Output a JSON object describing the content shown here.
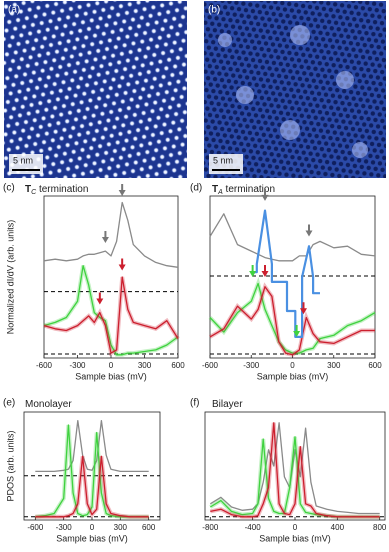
{
  "images": [
    {
      "label": "(a)",
      "scale": "5 nm"
    },
    {
      "label": "(b)",
      "scale": "5 nm"
    }
  ],
  "chart_data": [
    {
      "type": "line",
      "label": "(c)",
      "title": [
        "T",
        "C",
        " termination"
      ],
      "ylabel": "Normalized dI/dV (arb. units)",
      "xlabel": "Sample bias (mV)",
      "xlim": [
        -600,
        600
      ],
      "ylim": [
        0,
        10
      ],
      "xticks": [
        -600,
        -300,
        0,
        300,
        600
      ],
      "hlines": [
        4.1,
        0.25
      ],
      "x": [
        -600,
        -500,
        -400,
        -300,
        -250,
        -200,
        -150,
        -100,
        -50,
        0,
        50,
        100,
        150,
        200,
        300,
        400,
        500,
        600
      ],
      "series": [
        {
          "color": "#8a8a8a",
          "values": [
            6.0,
            6.1,
            6.0,
            6.1,
            6.3,
            6.4,
            6.4,
            6.5,
            6.6,
            6.3,
            7.2,
            9.6,
            8.5,
            7.0,
            6.3,
            5.9,
            5.7,
            5.6
          ]
        },
        {
          "color": "#3fd23f",
          "values": [
            2.0,
            2.2,
            2.5,
            3.5,
            5.7,
            4.5,
            2.8,
            2.5,
            2.3,
            0.8,
            0.2,
            0.2,
            0.3,
            0.3,
            0.4,
            0.5,
            0.8,
            1.3
          ]
        },
        {
          "color": "#cc1f2e",
          "values": [
            2.0,
            1.8,
            1.7,
            2.0,
            2.3,
            2.6,
            2.2,
            2.8,
            2.0,
            0.3,
            0.5,
            5.0,
            3.0,
            2.2,
            2.0,
            1.8,
            2.3,
            1.2
          ]
        }
      ],
      "arrows": [
        {
          "x": -50,
          "y": 7.1,
          "color": "#777"
        },
        {
          "x": 100,
          "y": 10.0,
          "color": "#777"
        },
        {
          "x": -100,
          "y": 3.3,
          "color": "#cc1f2e"
        },
        {
          "x": 100,
          "y": 5.4,
          "color": "#cc1f2e"
        }
      ]
    },
    {
      "type": "line",
      "label": "(d)",
      "title": [
        "T",
        "A",
        " termination"
      ],
      "xlabel": "Sample bias (mV)",
      "xlim": [
        -600,
        600
      ],
      "ylim": [
        0,
        10
      ],
      "xticks": [
        -600,
        -300,
        0,
        300,
        600
      ],
      "hlines": [
        5.06,
        0.25
      ],
      "x": [
        -600,
        -500,
        -400,
        -300,
        -250,
        -200,
        -150,
        -100,
        -50,
        0,
        50,
        100,
        150,
        200,
        300,
        400,
        500,
        600
      ],
      "series": [
        {
          "color": "#8a8a8a",
          "values": [
            7.5,
            8.9,
            7.0,
            6.6,
            6.4,
            6.2,
            6.1,
            6.0,
            6.0,
            6.0,
            6.3,
            6.3,
            7.0,
            7.2,
            6.8,
            6.9,
            6.4,
            6.3
          ]
        },
        {
          "color": "#3fd23f",
          "values": [
            2.5,
            1.6,
            2.8,
            3.5,
            4.6,
            3.0,
            2.0,
            1.0,
            0.5,
            0.3,
            0.3,
            0.5,
            0.6,
            1.2,
            1.4,
            2.0,
            2.3,
            2.8
          ]
        },
        {
          "color": "#cc1f2e",
          "values": [
            1.3,
            1.8,
            3.2,
            2.4,
            3.0,
            4.4,
            3.8,
            1.0,
            0.3,
            0.2,
            0.5,
            2.5,
            1.5,
            1.0,
            0.9,
            1.3,
            1.7,
            1.7
          ]
        },
        {
          "color": "#4a90e2",
          "x": [
            -300,
            -260,
            -260,
            -200,
            -150,
            -150,
            -40,
            -40,
            20,
            20,
            70,
            70,
            120,
            150,
            150,
            200
          ],
          "values": [
            5.3,
            5.3,
            5.8,
            9.1,
            5.8,
            4.7,
            4.7,
            2.9,
            2.9,
            1.3,
            1.3,
            5.0,
            6.9,
            5.0,
            4.0,
            4.0
          ]
        }
      ],
      "arrows": [
        {
          "x": -200,
          "y": 9.7,
          "color": "#777"
        },
        {
          "x": 120,
          "y": 7.5,
          "color": "#777"
        },
        {
          "x": -290,
          "y": 5.0,
          "color": "#3fd23f"
        },
        {
          "x": -200,
          "y": 5.0,
          "color": "#cc1f2e"
        },
        {
          "x": 30,
          "y": 1.3,
          "color": "#3fd23f"
        },
        {
          "x": 80,
          "y": 2.7,
          "color": "#cc1f2e"
        }
      ]
    },
    {
      "type": "line",
      "label": "(e)",
      "title": [
        "Monolayer"
      ],
      "ylabel": "PDOS (arb. units)",
      "xlabel": "Sample bias (mV)",
      "xlim": [
        -720,
        720
      ],
      "ylim": [
        0,
        10
      ],
      "xticks": [
        -600,
        -300,
        0,
        300,
        600
      ],
      "hlines": [
        4.1,
        0.3
      ],
      "x": [
        -600,
        -500,
        -400,
        -300,
        -250,
        -200,
        -150,
        -100,
        -50,
        0,
        50,
        100,
        150,
        200,
        300,
        400,
        500,
        600
      ],
      "series": [
        {
          "color": "#8a8a8a",
          "values": [
            4.5,
            4.5,
            4.5,
            4.6,
            4.7,
            5.5,
            9.2,
            6.0,
            4.7,
            4.6,
            5.5,
            9.2,
            6.0,
            4.7,
            4.5,
            4.5,
            4.5,
            4.5
          ]
        },
        {
          "color": "#3fd23f",
          "values": [
            0.3,
            0.4,
            0.6,
            2.0,
            8.8,
            2.5,
            0.6,
            0.4,
            0.5,
            1.2,
            8.1,
            2.5,
            0.6,
            0.4,
            0.3,
            0.3,
            0.3,
            0.3
          ]
        },
        {
          "color": "#cc1f2e",
          "values": [
            0.3,
            0.3,
            0.3,
            0.3,
            0.4,
            0.6,
            1.5,
            5.9,
            1.5,
            0.5,
            1.0,
            5.9,
            1.5,
            0.6,
            0.4,
            0.3,
            0.3,
            0.3
          ]
        }
      ]
    },
    {
      "type": "line",
      "label": "(f)",
      "title": [
        "Bilayer"
      ],
      "xlabel": "Sample bias (mV)",
      "xlim": [
        -850,
        850
      ],
      "ylim": [
        0,
        10
      ],
      "xticks": [
        -800,
        -400,
        0,
        400,
        800
      ],
      "hlines": [
        0.3
      ],
      "x": [
        -800,
        -700,
        -600,
        -500,
        -400,
        -350,
        -300,
        -250,
        -200,
        -150,
        -100,
        -50,
        0,
        50,
        100,
        150,
        200,
        300,
        400,
        500,
        600,
        700,
        800
      ],
      "series": [
        {
          "color": "#8a8a8a",
          "values": [
            1.5,
            2.1,
            1.2,
            0.9,
            1.0,
            1.5,
            3.5,
            6.5,
            5.0,
            9.0,
            4.0,
            3.0,
            6.5,
            4.0,
            8.5,
            3.5,
            1.3,
            1.0,
            0.8,
            0.7,
            0.6,
            0.6,
            0.6
          ]
        },
        {
          "color": "#3fd23f",
          "values": [
            1.2,
            1.8,
            0.8,
            0.5,
            0.6,
            1.5,
            7.5,
            2.0,
            0.8,
            0.6,
            0.6,
            3.0,
            7.7,
            1.5,
            0.7,
            0.6,
            0.5,
            0.4,
            0.3,
            0.3,
            0.3,
            0.3,
            0.3
          ]
        },
        {
          "color": "#cc1f2e",
          "values": [
            0.8,
            1.0,
            0.5,
            0.3,
            0.3,
            0.4,
            1.5,
            3.0,
            9.0,
            1.5,
            0.6,
            0.5,
            1.5,
            6.8,
            1.5,
            1.3,
            0.6,
            0.4,
            0.3,
            0.3,
            0.3,
            0.3,
            0.3
          ]
        }
      ]
    }
  ]
}
